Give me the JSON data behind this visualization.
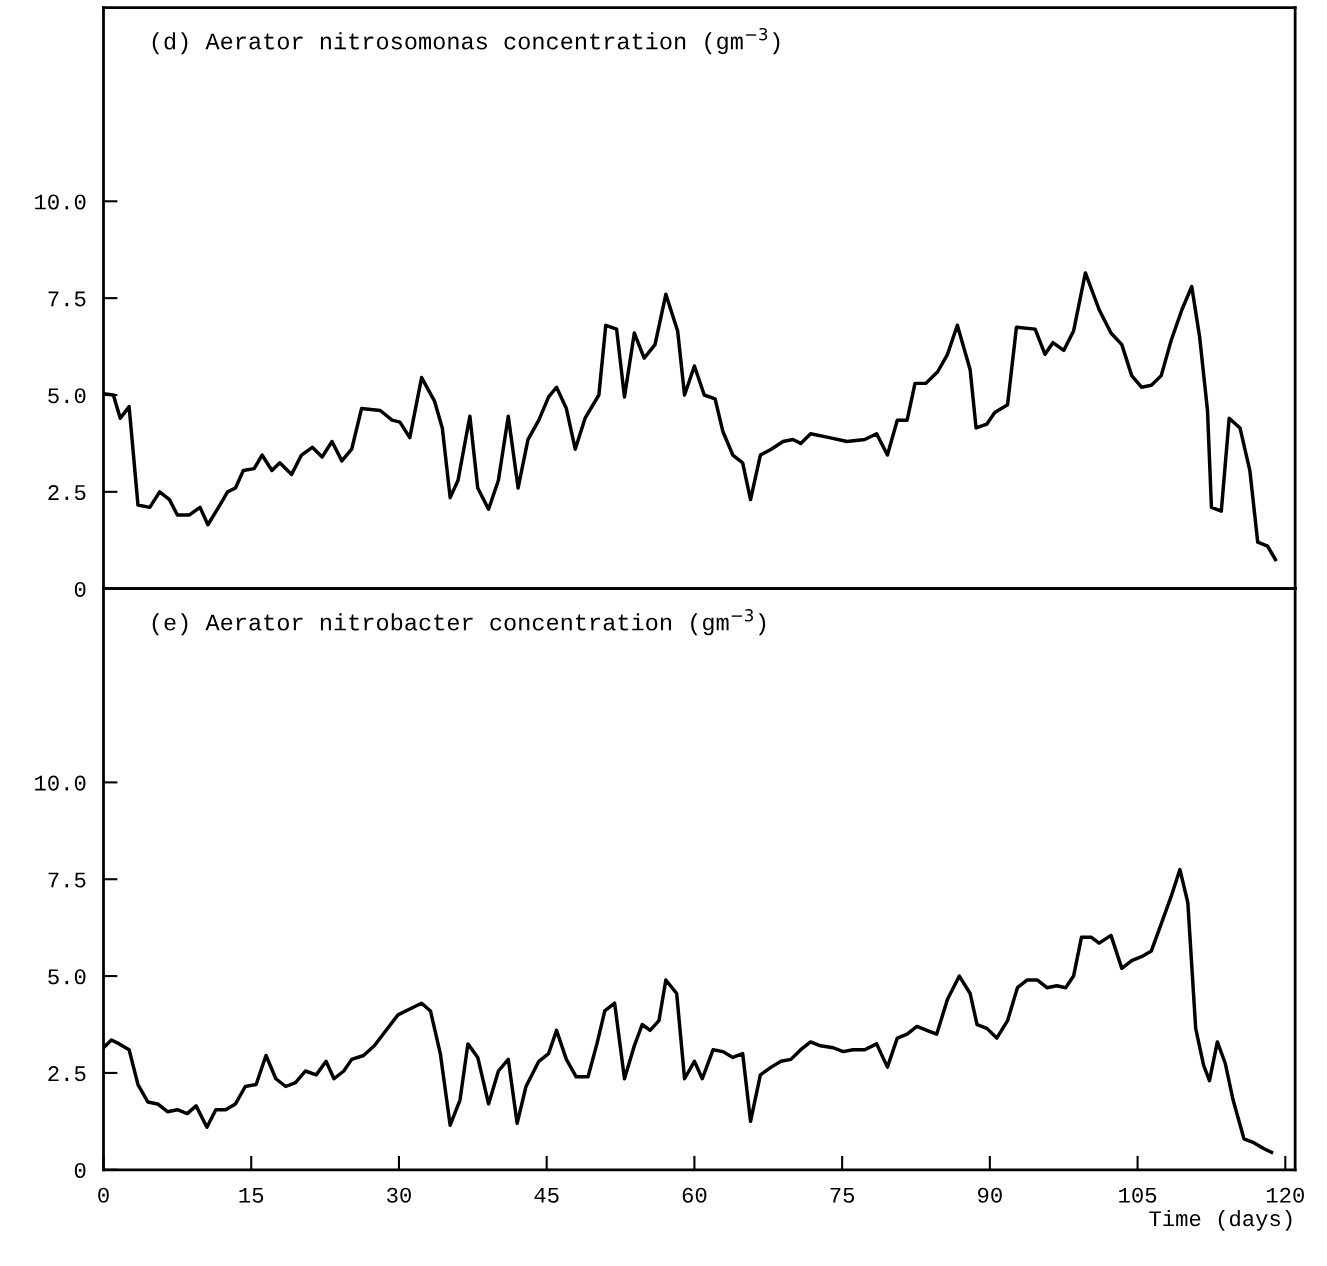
{
  "chart_data": [
    {
      "type": "line",
      "title": "(d) Aerator nitrosomonas concentration (gm$^{−3}$)",
      "xlim": [
        0,
        121
      ],
      "ylim": [
        0,
        15
      ],
      "yticks": [
        {
          "value": 0,
          "label": "0"
        },
        {
          "value": 2.5,
          "label": "2.5"
        },
        {
          "value": 5,
          "label": "5.0"
        },
        {
          "value": 7.5,
          "label": "7.5"
        },
        {
          "value": 10,
          "label": "10.0"
        }
      ],
      "tick_labels": "y",
      "series": [
        {
          "color": "#000000",
          "x": [
            0,
            1.0,
            1.7,
            2.6,
            3.5,
            4.7,
            5.7,
            6.7,
            7.5,
            8.7,
            9.8,
            10.6,
            11.8,
            12.6,
            13.4,
            14.2,
            15.3,
            16.1,
            17.1,
            17.9,
            19.1,
            20.1,
            21.2,
            22.2,
            23.2,
            24.2,
            25.2,
            26.2,
            28.1,
            29.3,
            30.1,
            31.1,
            32.3,
            33.6,
            34.4,
            35.2,
            36.0,
            37.2,
            38.0,
            39.1,
            40.1,
            41.1,
            42.1,
            43.1,
            44.2,
            45.2,
            46.0,
            47.0,
            47.9,
            48.9,
            50.3,
            51.0,
            52.1,
            52.9,
            53.9,
            54.9,
            56.0,
            57.1,
            58.3,
            59.0,
            60.0,
            61.0,
            62.1,
            62.9,
            63.9,
            64.9,
            65.7,
            66.7,
            67.8,
            69.0,
            70.0,
            70.8,
            71.8,
            73.7,
            75.5,
            77.3,
            78.5,
            79.6,
            80.6,
            81.6,
            82.4,
            83.5,
            84.7,
            85.7,
            86.7,
            88.0,
            88.6,
            89.7,
            90.5,
            91.8,
            92.7,
            94.6,
            95.6,
            96.4,
            97.5,
            98.5,
            99.7,
            101.1,
            102.3,
            103.4,
            104.4,
            105.4,
            106.4,
            107.4,
            108.4,
            109.5,
            110.5,
            111.3,
            112.1,
            112.5,
            113.5,
            114.3,
            115.4,
            116.4,
            117.2,
            118.2,
            119.0
          ],
          "values": [
            5.03,
            5.0,
            4.4,
            4.7,
            2.16,
            2.1,
            2.5,
            2.3,
            1.9,
            1.9,
            2.1,
            1.65,
            2.15,
            2.5,
            2.6,
            3.05,
            3.1,
            3.45,
            3.05,
            3.25,
            2.95,
            3.45,
            3.65,
            3.4,
            3.8,
            3.3,
            3.6,
            4.65,
            4.6,
            4.35,
            4.3,
            3.9,
            5.45,
            4.85,
            4.15,
            2.35,
            2.8,
            4.45,
            2.6,
            2.05,
            2.8,
            4.45,
            2.6,
            3.85,
            4.35,
            4.95,
            5.2,
            4.65,
            3.6,
            4.4,
            5.0,
            6.8,
            6.7,
            4.95,
            6.6,
            5.95,
            6.3,
            7.6,
            6.65,
            5.0,
            5.75,
            5.0,
            4.9,
            4.05,
            3.45,
            3.25,
            2.3,
            3.45,
            3.6,
            3.8,
            3.85,
            3.75,
            4.0,
            3.9,
            3.8,
            3.85,
            4.0,
            3.45,
            4.35,
            4.35,
            5.3,
            5.3,
            5.6,
            6.05,
            6.8,
            5.65,
            4.15,
            4.25,
            4.55,
            4.75,
            6.75,
            6.7,
            6.05,
            6.35,
            6.15,
            6.65,
            8.15,
            7.2,
            6.6,
            6.3,
            5.5,
            5.2,
            5.25,
            5.5,
            6.4,
            7.2,
            7.8,
            6.5,
            4.6,
            2.1,
            2.0,
            4.4,
            4.15,
            3.05,
            1.2,
            1.1,
            0.75
          ]
        }
      ]
    },
    {
      "type": "line",
      "title": "(e) Aerator nitrobacter concentration (gm$^{−3}$)",
      "xlabel": "Time (days)",
      "xlim": [
        0,
        121
      ],
      "xticks": [
        0,
        15,
        30,
        45,
        60,
        75,
        90,
        105,
        120
      ],
      "ylim": [
        0,
        15
      ],
      "yticks": [
        {
          "value": 0,
          "label": "0"
        },
        {
          "value": 2.5,
          "label": "2.5"
        },
        {
          "value": 5,
          "label": "5.0"
        },
        {
          "value": 7.5,
          "label": "7.5"
        },
        {
          "value": 10,
          "label": "10.0"
        }
      ],
      "series": [
        {
          "color": "#000000",
          "x": [
            0,
            0.8,
            1.6,
            2.6,
            3.5,
            4.5,
            5.5,
            6.5,
            7.5,
            8.5,
            9.4,
            10.5,
            11.4,
            12.4,
            13.4,
            14.4,
            15.5,
            16.5,
            17.5,
            18.5,
            19.5,
            20.5,
            21.6,
            22.6,
            23.4,
            24.4,
            25.2,
            26.4,
            27.5,
            28.7,
            29.9,
            31.1,
            32.3,
            33.2,
            34.2,
            35.2,
            36.2,
            37.0,
            38.0,
            39.1,
            40.1,
            41.1,
            42.0,
            42.9,
            44.2,
            45.2,
            46.0,
            47.0,
            48.0,
            49.2,
            50.1,
            50.9,
            51.9,
            52.9,
            53.9,
            54.7,
            55.5,
            56.4,
            57.1,
            58.2,
            59.0,
            60.0,
            60.8,
            61.9,
            62.9,
            63.9,
            64.9,
            65.7,
            66.7,
            67.8,
            68.8,
            69.8,
            70.8,
            71.8,
            72.8,
            74.1,
            75.1,
            76.1,
            77.3,
            78.5,
            79.6,
            80.6,
            81.6,
            82.6,
            83.6,
            84.6,
            85.7,
            86.9,
            88.0,
            88.7,
            89.7,
            90.7,
            91.8,
            92.8,
            93.8,
            94.8,
            95.8,
            96.8,
            97.7,
            98.5,
            99.3,
            100.3,
            101.1,
            102.3,
            103.4,
            104.4,
            105.4,
            106.4,
            107.4,
            108.4,
            109.3,
            110.1,
            110.9,
            111.7,
            112.3,
            113.1,
            113.9,
            114.7,
            115.8,
            116.8,
            117.8,
            118.6
          ],
          "values": [
            3.15,
            3.35,
            3.25,
            3.1,
            2.2,
            1.75,
            1.7,
            1.5,
            1.55,
            1.45,
            1.65,
            1.1,
            1.55,
            1.55,
            1.7,
            2.15,
            2.2,
            2.95,
            2.35,
            2.15,
            2.25,
            2.55,
            2.45,
            2.8,
            2.35,
            2.55,
            2.85,
            2.95,
            3.2,
            3.6,
            4.0,
            4.15,
            4.3,
            4.1,
            3.0,
            1.15,
            1.8,
            3.25,
            2.9,
            1.7,
            2.55,
            2.85,
            1.2,
            2.15,
            2.8,
            3.0,
            3.6,
            2.85,
            2.4,
            2.4,
            3.25,
            4.1,
            4.3,
            2.35,
            3.2,
            3.75,
            3.6,
            3.85,
            4.9,
            4.55,
            2.35,
            2.8,
            2.35,
            3.1,
            3.05,
            2.9,
            3.0,
            1.25,
            2.45,
            2.65,
            2.8,
            2.85,
            3.1,
            3.3,
            3.2,
            3.15,
            3.05,
            3.1,
            3.1,
            3.25,
            2.65,
            3.4,
            3.5,
            3.7,
            3.6,
            3.5,
            4.4,
            5.0,
            4.55,
            3.75,
            3.65,
            3.4,
            3.85,
            4.7,
            4.9,
            4.9,
            4.7,
            4.75,
            4.7,
            5.0,
            6.0,
            6.0,
            5.85,
            6.05,
            5.2,
            5.4,
            5.5,
            5.65,
            6.35,
            7.05,
            7.75,
            6.9,
            3.65,
            2.7,
            2.3,
            3.3,
            2.75,
            1.8,
            0.8,
            0.7,
            0.55,
            0.45
          ]
        }
      ]
    }
  ]
}
